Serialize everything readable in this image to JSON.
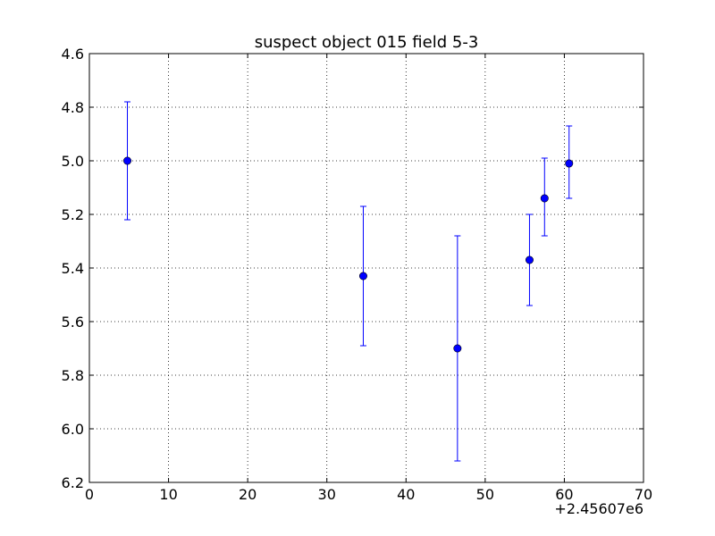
{
  "chart_data": {
    "type": "scatter",
    "title": "suspect object 015 field 5-3",
    "xlabel": "",
    "ylabel": "",
    "x_offset_label": "+2.45607e6",
    "x_offset": 2456070,
    "xlim": [
      0,
      70
    ],
    "ylim": [
      4.6,
      6.2
    ],
    "y_inverted": true,
    "grid": true,
    "x_ticks": [
      0,
      10,
      20,
      30,
      40,
      50,
      60,
      70
    ],
    "x_tick_labels": [
      "0",
      "10",
      "20",
      "30",
      "40",
      "50",
      "60",
      "70"
    ],
    "y_ticks": [
      4.6,
      4.8,
      5.0,
      5.2,
      5.4,
      5.6,
      5.8,
      6.0,
      6.2
    ],
    "y_tick_labels": [
      "4.6",
      "4.8",
      "5.0",
      "5.2",
      "5.4",
      "5.6",
      "5.8",
      "6.0",
      "6.2"
    ],
    "series": [
      {
        "color": "#0000ff",
        "marker": "circle",
        "points": [
          {
            "x": 4.8,
            "y": 5.0,
            "yerr_low": 4.78,
            "yerr_high": 5.22
          },
          {
            "x": 34.6,
            "y": 5.43,
            "yerr_low": 5.17,
            "yerr_high": 5.69
          },
          {
            "x": 46.5,
            "y": 5.7,
            "yerr_low": 5.28,
            "yerr_high": 6.12
          },
          {
            "x": 55.6,
            "y": 5.37,
            "yerr_low": 5.2,
            "yerr_high": 5.54
          },
          {
            "x": 57.5,
            "y": 5.14,
            "yerr_low": 4.99,
            "yerr_high": 5.28
          },
          {
            "x": 60.6,
            "y": 5.01,
            "yerr_low": 4.87,
            "yerr_high": 5.14
          }
        ]
      }
    ]
  }
}
